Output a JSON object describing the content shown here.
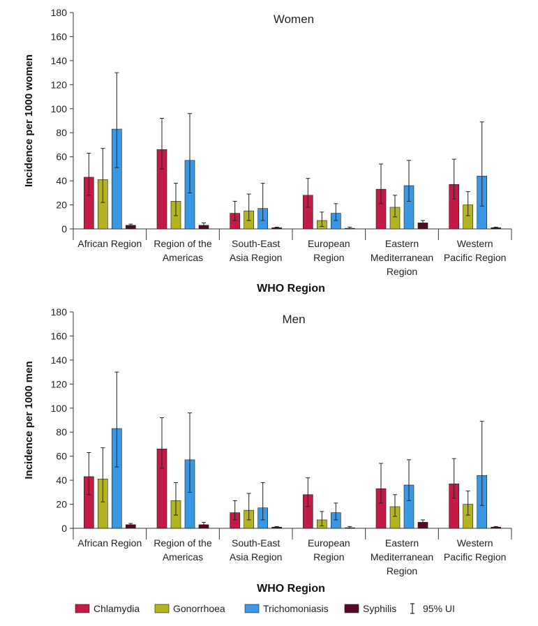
{
  "colors": {
    "Chlamydia": "#c21b47",
    "Gonorrhoea": "#b3b323",
    "Trichomoniasis": "#3a97e3",
    "Syphilis": "#5a0827",
    "axis": "#333333",
    "errorbar": "#222222"
  },
  "legend": {
    "items": [
      "Chlamydia",
      "Gonorrhoea",
      "Trichomoniasis",
      "Syphilis"
    ],
    "ui_label": "95% UI"
  },
  "chart_data": [
    {
      "type": "bar",
      "title": "Women",
      "xlabel": "WHO Region",
      "ylabel": "Incidence per 1000 women",
      "ylim": [
        0,
        180
      ],
      "yticks": [
        0,
        20,
        40,
        60,
        80,
        100,
        120,
        140,
        160,
        180
      ],
      "categories": [
        [
          "African Region"
        ],
        [
          "Region of the",
          "Americas"
        ],
        [
          "South-East",
          "Asia Region"
        ],
        [
          "European",
          "Region"
        ],
        [
          "Eastern",
          "Mediterranean",
          "Region"
        ],
        [
          "Western",
          "Pacific Region"
        ]
      ],
      "series": [
        {
          "name": "Chlamydia",
          "values": [
            43,
            66,
            13,
            28,
            33,
            37
          ],
          "lower": [
            28,
            50,
            7,
            18,
            21,
            25
          ],
          "upper": [
            63,
            92,
            23,
            42,
            54,
            58
          ]
        },
        {
          "name": "Gonorrhoea",
          "values": [
            41,
            23,
            15,
            7,
            18,
            20
          ],
          "lower": [
            22,
            11,
            7,
            2,
            10,
            11
          ],
          "upper": [
            67,
            38,
            29,
            14,
            28,
            31
          ]
        },
        {
          "name": "Trichomoniasis",
          "values": [
            83,
            57,
            17,
            13,
            36,
            44
          ],
          "lower": [
            51,
            30,
            7,
            7,
            23,
            19
          ],
          "upper": [
            130,
            96,
            38,
            21,
            57,
            89
          ]
        },
        {
          "name": "Syphilis",
          "values": [
            3,
            3,
            1,
            0.5,
            5,
            1
          ],
          "lower": [
            2,
            2,
            0.5,
            0,
            3,
            0.5
          ],
          "upper": [
            4,
            5,
            1.5,
            1.5,
            7,
            1.5
          ]
        }
      ]
    },
    {
      "type": "bar",
      "title": "Men",
      "xlabel": "WHO Region",
      "ylabel": "Incidence per 1000 men",
      "ylim": [
        0,
        180
      ],
      "yticks": [
        0,
        20,
        40,
        60,
        80,
        100,
        120,
        140,
        160,
        180
      ],
      "categories": [
        [
          "African Region"
        ],
        [
          "Region of the",
          "Americas"
        ],
        [
          "South-East",
          "Asia Region"
        ],
        [
          "European",
          "Region"
        ],
        [
          "Eastern",
          "Mediterranean",
          "Region"
        ],
        [
          "Western",
          "Pacific Region"
        ]
      ],
      "series": [
        {
          "name": "Chlamydia",
          "values": [
            43,
            66,
            13,
            28,
            33,
            37
          ],
          "lower": [
            28,
            50,
            7,
            18,
            21,
            25
          ],
          "upper": [
            63,
            92,
            23,
            42,
            54,
            58
          ]
        },
        {
          "name": "Gonorrhoea",
          "values": [
            41,
            23,
            15,
            7,
            18,
            20
          ],
          "lower": [
            22,
            11,
            7,
            2,
            10,
            11
          ],
          "upper": [
            67,
            38,
            29,
            14,
            28,
            31
          ]
        },
        {
          "name": "Trichomoniasis",
          "values": [
            83,
            57,
            17,
            13,
            36,
            44
          ],
          "lower": [
            51,
            30,
            7,
            7,
            23,
            19
          ],
          "upper": [
            130,
            96,
            38,
            21,
            57,
            89
          ]
        },
        {
          "name": "Syphilis",
          "values": [
            3,
            3,
            1,
            0.5,
            5,
            1
          ],
          "lower": [
            2,
            2,
            0.5,
            0,
            3,
            0.5
          ],
          "upper": [
            4,
            5,
            1.5,
            1.5,
            7,
            1.5
          ]
        }
      ]
    }
  ]
}
